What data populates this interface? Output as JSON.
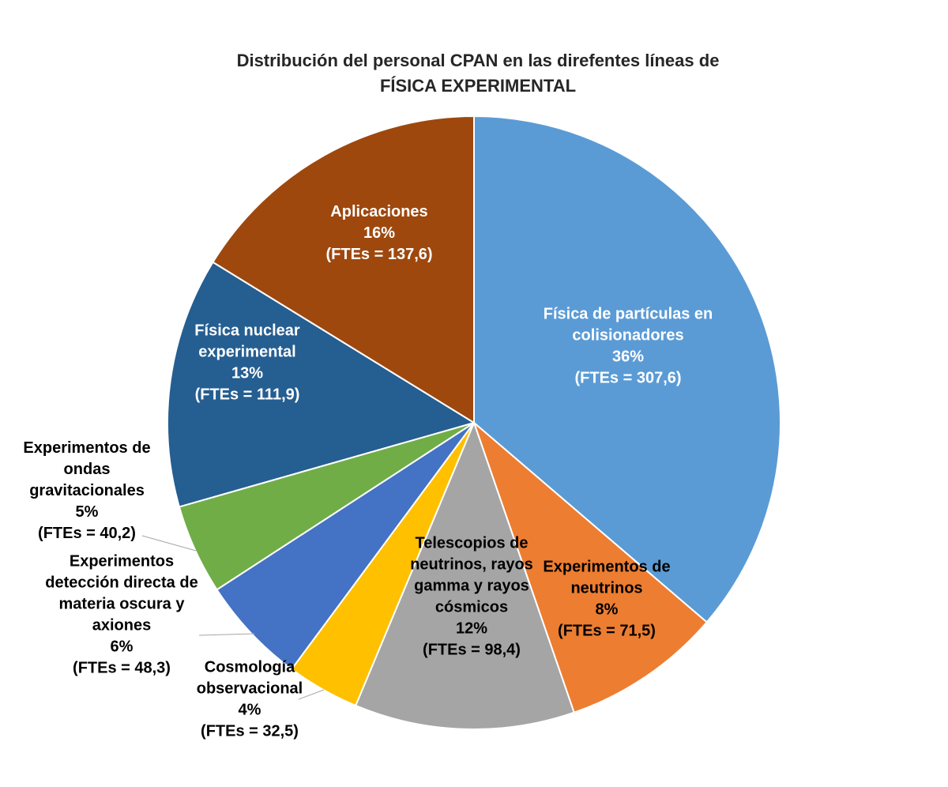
{
  "chart_data": {
    "type": "pie",
    "title_lines": [
      "Distribución del personal CPAN en las direfentes líneas de",
      "FÍSICA EXPERIMENTAL"
    ],
    "slices": [
      {
        "name": "Física de partículas en colisionadores",
        "label_lines": [
          "Física de partículas en",
          "colisionadores"
        ],
        "percent_text": "36%",
        "fte_text": "(FTEs = 307,6)",
        "value": 307.6,
        "color": "#5B9BD5",
        "label_color": "#ffffff"
      },
      {
        "name": "Experimentos de neutrinos",
        "label_lines": [
          "Experimentos de",
          "neutrinos"
        ],
        "percent_text": "8%",
        "fte_text": "(FTEs = 71,5)",
        "value": 71.5,
        "color": "#ED7D31",
        "label_color": "#000000"
      },
      {
        "name": "Telescopios de neutrinos, rayos gamma y rayos cósmicos",
        "label_lines": [
          "Telescopios de",
          "neutrinos, rayos",
          "gamma y rayos",
          "cósmicos"
        ],
        "percent_text": "12%",
        "fte_text": "(FTEs = 98,4)",
        "value": 98.4,
        "color": "#A5A5A5",
        "label_color": "#000000"
      },
      {
        "name": "Cosmología observacional",
        "label_lines": [
          "Cosmología",
          "observacional"
        ],
        "percent_text": "4%",
        "fte_text": "(FTEs = 32,5)",
        "value": 32.5,
        "color": "#FFC000",
        "label_color": "#000000"
      },
      {
        "name": "Experimentos detección directa de materia oscura y axiones",
        "label_lines": [
          "Experimentos",
          "detección directa de",
          "materia oscura y",
          "axiones"
        ],
        "percent_text": "6%",
        "fte_text": "(FTEs = 48,3)",
        "value": 48.3,
        "color": "#4472C4",
        "label_color": "#000000"
      },
      {
        "name": "Experimentos de ondas gravitacionales",
        "label_lines": [
          "Experimentos de",
          "ondas",
          "gravitacionales"
        ],
        "percent_text": "5%",
        "fte_text": "(FTEs = 40,2)",
        "value": 40.2,
        "color": "#70AD47",
        "label_color": "#000000"
      },
      {
        "name": "Física nuclear experimental",
        "label_lines": [
          "Física nuclear",
          "experimental"
        ],
        "percent_text": "13%",
        "fte_text": "(FTEs = 111,9)",
        "value": 111.9,
        "color": "#255E91",
        "label_color": "#ffffff"
      },
      {
        "name": "Aplicaciones",
        "label_lines": [
          "Aplicaciones"
        ],
        "percent_text": "16%",
        "fte_text": "(FTEs = 137,6)",
        "value": 137.6,
        "color": "#9E480E",
        "label_color": "#ffffff"
      }
    ],
    "legend": "none"
  }
}
